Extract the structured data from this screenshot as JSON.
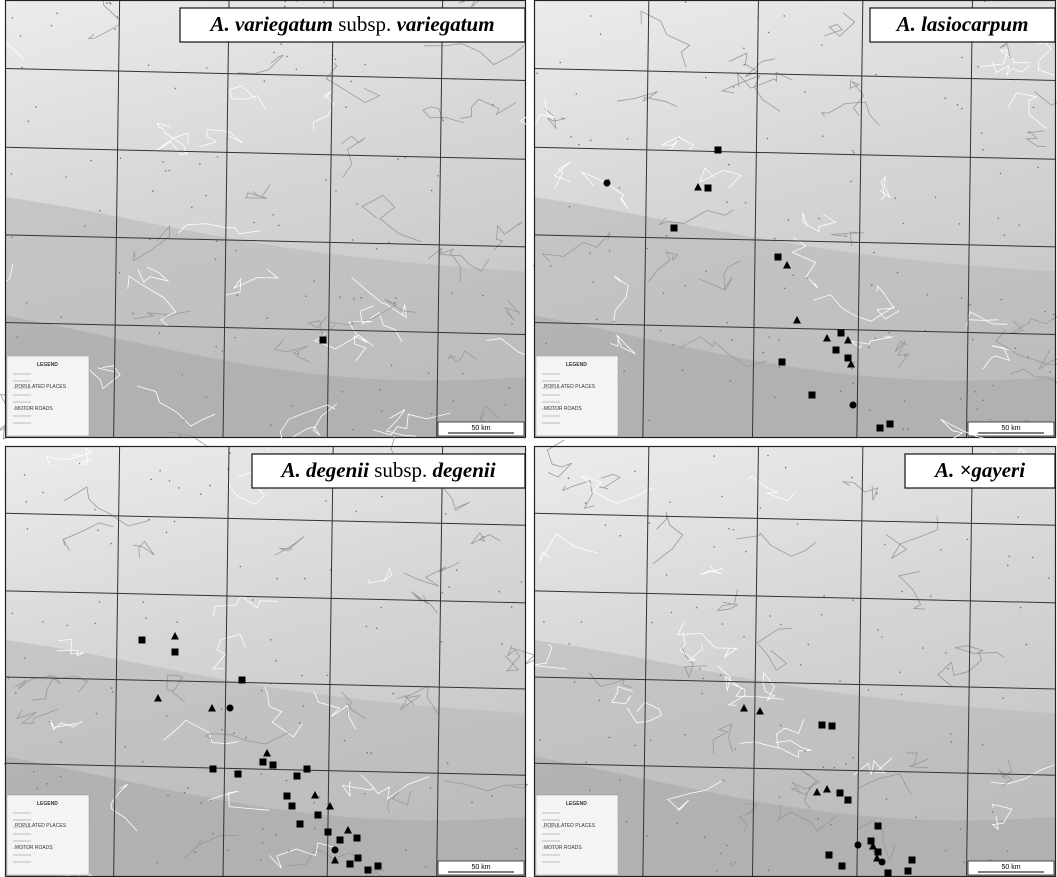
{
  "panels": [
    {
      "title": [
        "A. variegatum",
        "subsp.",
        "variegatum"
      ],
      "scale": "50 km",
      "legend": [
        "LEGEND",
        "POPULATED PLACES",
        "MOTOR ROADS"
      ]
    },
    {
      "title": [
        "A. lasiocarpum"
      ],
      "scale": "50 km",
      "legend": [
        "LEGEND",
        "POPULATED PLACES",
        "MOTOR ROADS"
      ]
    },
    {
      "title": [
        "A. degenii",
        "subsp.",
        "degenii"
      ],
      "scale": "50 km",
      "legend": [
        "LEGEND",
        "POPULATED PLACES",
        "MOTOR ROADS"
      ]
    },
    {
      "title": [
        "A. ×gayeri"
      ],
      "scale": "50 km",
      "legend": [
        "LEGEND",
        "POPULATED PLACES",
        "MOTOR ROADS"
      ]
    }
  ]
}
